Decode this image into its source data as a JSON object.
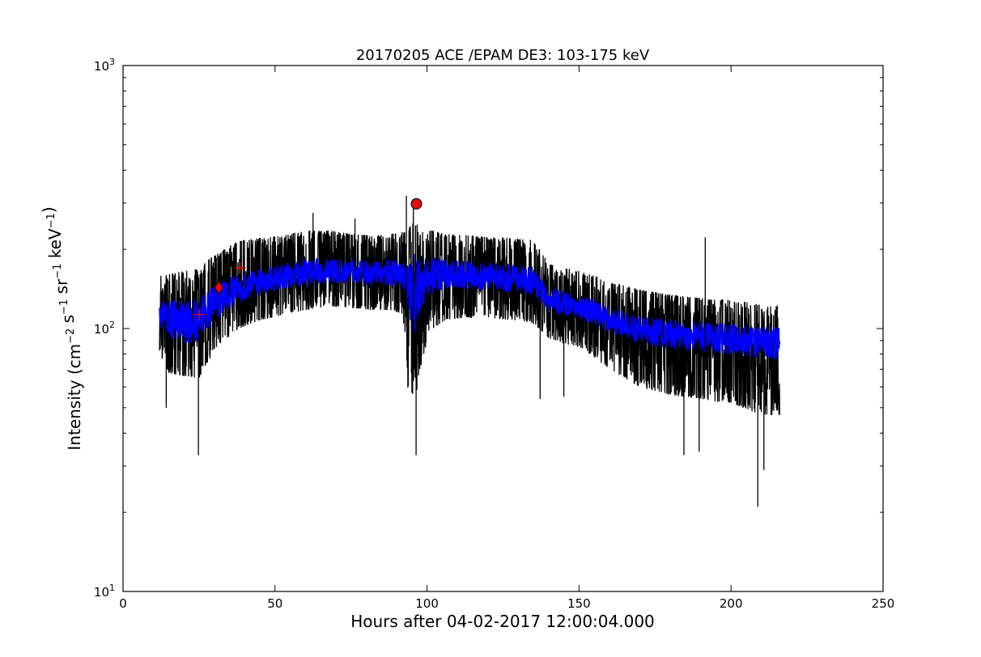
{
  "chart_data": {
    "type": "line",
    "title": "20170205 ACE /EPAM DE3: 103-175 keV",
    "xlabel": "Hours after 04-02-2017 12:00:04.000",
    "ylabel": {
      "prefix": "Intensity (cm",
      "parts": [
        {
          "base": "cm",
          "exp": "−2"
        },
        {
          "base": " s",
          "exp": "−1"
        },
        {
          "base": " sr",
          "exp": "−1"
        },
        {
          "base": " keV",
          "exp": "−1"
        }
      ],
      "suffix": ")"
    },
    "xlim": [
      0,
      250
    ],
    "ylim": [
      10,
      1000
    ],
    "yscale": "log",
    "grid": false,
    "xticks": [
      0,
      50,
      100,
      150,
      200,
      250
    ],
    "yticks": [
      {
        "value": 10,
        "base": "10",
        "exp": "1"
      },
      {
        "value": 100,
        "base": "10",
        "exp": "2"
      },
      {
        "value": 1000,
        "base": "10",
        "exp": "3"
      }
    ],
    "colors": {
      "raw": "#000000",
      "smoothed": "#0000ff",
      "markers": "#ff0000",
      "peak": "#dd1111"
    },
    "series": [
      {
        "kind": "raw-envelope",
        "x": [
          12,
          15,
          20,
          25,
          28,
          32,
          38,
          45,
          52,
          60,
          68,
          75,
          82,
          88,
          92,
          93.5,
          96,
          98,
          101,
          106,
          112,
          120,
          128,
          134,
          137,
          140,
          145,
          150,
          155,
          160,
          170,
          180,
          190,
          200,
          208,
          212,
          216
        ],
        "upper": [
          158,
          160,
          165,
          168,
          182,
          195,
          215,
          220,
          225,
          235,
          235,
          228,
          225,
          228,
          232,
          235,
          258,
          232,
          236,
          228,
          226,
          222,
          220,
          218,
          200,
          175,
          170,
          165,
          158,
          150,
          140,
          134,
          130,
          128,
          124,
          122,
          122
        ],
        "lower": [
          80,
          68,
          66,
          65,
          75,
          88,
          100,
          108,
          112,
          118,
          122,
          120,
          118,
          118,
          114,
          60,
          52,
          72,
          98,
          108,
          110,
          110,
          108,
          106,
          100,
          92,
          88,
          85,
          78,
          70,
          60,
          56,
          54,
          52,
          48,
          47,
          47
        ]
      },
      {
        "kind": "smoothed-band",
        "x": [
          12,
          15,
          20,
          25,
          28,
          32,
          38,
          45,
          52,
          60,
          68,
          75,
          82,
          88,
          92,
          93.5,
          96,
          98,
          101,
          106,
          112,
          120,
          128,
          134,
          137,
          140,
          145,
          150,
          155,
          160,
          170,
          180,
          190,
          200,
          208,
          212,
          216
        ],
        "upper": [
          128,
          128,
          128,
          130,
          140,
          150,
          160,
          168,
          176,
          184,
          185,
          182,
          180,
          182,
          185,
          175,
          198,
          180,
          188,
          182,
          180,
          177,
          175,
          172,
          158,
          145,
          140,
          136,
          128,
          120,
          112,
          108,
          106,
          104,
          102,
          101,
          101
        ],
        "lower": [
          98,
          92,
          88,
          88,
          98,
          112,
          125,
          135,
          141,
          146,
          150,
          148,
          146,
          146,
          142,
          108,
          95,
          118,
          135,
          142,
          142,
          140,
          138,
          136,
          128,
          116,
          112,
          110,
          104,
          97,
          88,
          84,
          82,
          80,
          78,
          77,
          77
        ]
      }
    ],
    "spikes": [
      {
        "x": 24.8,
        "y": 33
      },
      {
        "x": 96.4,
        "y": 33
      },
      {
        "x": 93.2,
        "y": 320
      },
      {
        "x": 95.5,
        "y": 310
      },
      {
        "x": 137.2,
        "y": 54
      },
      {
        "x": 208.8,
        "y": 21
      },
      {
        "x": 210.8,
        "y": 29
      },
      {
        "x": 184.5,
        "y": 33
      },
      {
        "x": 189.5,
        "y": 34
      },
      {
        "x": 62.5,
        "y": 275
      },
      {
        "x": 76.3,
        "y": 262
      },
      {
        "x": 191.5,
        "y": 222
      },
      {
        "x": 14.2,
        "y": 50
      },
      {
        "x": 145,
        "y": 55
      }
    ],
    "markers": [
      {
        "type": "plus",
        "x": 25,
        "y": 113
      },
      {
        "type": "diamond",
        "x": 31.5,
        "y": 143
      },
      {
        "type": "plus",
        "x": 38.5,
        "y": 170
      },
      {
        "type": "circle",
        "x": 96.5,
        "y": 298
      }
    ]
  }
}
